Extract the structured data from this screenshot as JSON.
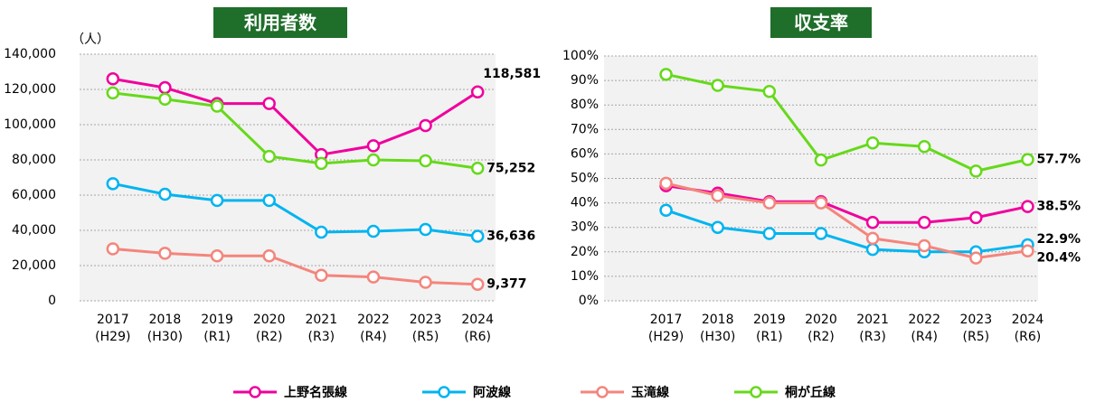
{
  "chart_data": [
    {
      "type": "line",
      "title": "利用者数",
      "ylabel": "（人）",
      "categories": [
        "2017\n(H29)",
        "2018\n(H30)",
        "2019\n(R1)",
        "2020\n(R2)",
        "2021\n(R3)",
        "2022\n(R4)",
        "2023\n(R5)",
        "2024\n(R6)"
      ],
      "ylim": [
        0,
        140000
      ],
      "yticks": [
        0,
        {
          "value": 20000,
          "label": "20,000"
        },
        {
          "value": 40000,
          "label": "40,000"
        },
        {
          "value": 60000,
          "label": "60,000"
        },
        {
          "value": 80000,
          "label": "80,000"
        },
        {
          "value": 100000,
          "label": "100,000"
        },
        {
          "value": 120000,
          "label": "120,000"
        },
        {
          "value": 140000,
          "label": "140,000"
        }
      ],
      "grid": true,
      "series": [
        {
          "name": "上野名張線",
          "color": "#f0009c",
          "values": [
            126000,
            121000,
            112000,
            112000,
            83000,
            88000,
            99500,
            118581
          ],
          "value_labels": [
            null,
            null,
            null,
            null,
            null,
            null,
            null,
            "118,581"
          ]
        },
        {
          "name": "阿波線",
          "color": "#00b4f0",
          "values": [
            66500,
            60500,
            57000,
            57000,
            39000,
            39500,
            40500,
            36636
          ],
          "value_labels": [
            null,
            null,
            null,
            null,
            null,
            null,
            null,
            "36,636"
          ]
        },
        {
          "name": "玉滝線",
          "color": "#f4857c",
          "values": [
            29500,
            27000,
            25500,
            25500,
            14500,
            13500,
            10500,
            9377
          ],
          "value_labels": [
            null,
            null,
            null,
            null,
            null,
            null,
            null,
            "9,377"
          ]
        },
        {
          "name": "桐が丘線",
          "color": "#66d91a",
          "values": [
            118000,
            114500,
            110500,
            82000,
            78000,
            80000,
            79500,
            75252
          ],
          "value_labels": [
            null,
            null,
            null,
            null,
            null,
            null,
            null,
            "75,252"
          ]
        }
      ]
    },
    {
      "type": "line",
      "title": "収支率",
      "categories": [
        "2017\n(H29)",
        "2018\n(H30)",
        "2019\n(R1)",
        "2020\n(R2)",
        "2021\n(R3)",
        "2022\n(R4)",
        "2023\n(R5)",
        "2024\n(R6)"
      ],
      "ylim": [
        0,
        100
      ],
      "yticks": [
        {
          "value": 0,
          "label": "0%"
        },
        {
          "value": 10,
          "label": "10%"
        },
        {
          "value": 20,
          "label": "20%"
        },
        {
          "value": 30,
          "label": "30%"
        },
        {
          "value": 40,
          "label": "40%"
        },
        {
          "value": 50,
          "label": "50%"
        },
        {
          "value": 60,
          "label": "60%"
        },
        {
          "value": 70,
          "label": "70%"
        },
        {
          "value": 80,
          "label": "80%"
        },
        {
          "value": 90,
          "label": "90%"
        },
        {
          "value": 100,
          "label": "100%"
        }
      ],
      "grid": true,
      "series": [
        {
          "name": "上野名張線",
          "color": "#f0009c",
          "values": [
            47,
            44,
            40.5,
            40.5,
            32,
            32,
            34,
            38.5
          ],
          "value_labels": [
            null,
            null,
            null,
            null,
            null,
            null,
            null,
            "38.5%"
          ]
        },
        {
          "name": "阿波線",
          "color": "#00b4f0",
          "values": [
            37,
            30,
            27.5,
            27.5,
            21,
            20,
            20,
            22.9
          ],
          "value_labels": [
            null,
            null,
            null,
            null,
            null,
            null,
            null,
            "22.9%"
          ]
        },
        {
          "name": "玉滝線",
          "color": "#f4857c",
          "values": [
            48,
            43,
            40,
            40,
            25.5,
            22.5,
            17.5,
            20.4
          ],
          "value_labels": [
            null,
            null,
            null,
            null,
            null,
            null,
            null,
            "20.4%"
          ]
        },
        {
          "name": "桐が丘線",
          "color": "#66d91a",
          "values": [
            92.5,
            88,
            85.5,
            57.5,
            64.5,
            63,
            53,
            57.7
          ],
          "value_labels": [
            null,
            null,
            null,
            null,
            null,
            null,
            null,
            "57.7%"
          ]
        }
      ]
    }
  ]
}
